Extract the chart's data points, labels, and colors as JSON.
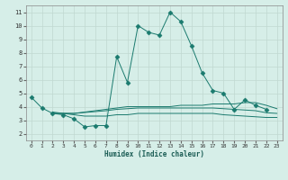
{
  "xlabel": "Humidex (Indice chaleur)",
  "xlim": [
    -0.5,
    23.5
  ],
  "ylim": [
    1.5,
    11.5
  ],
  "xticks": [
    0,
    1,
    2,
    3,
    4,
    5,
    6,
    7,
    8,
    9,
    10,
    11,
    12,
    13,
    14,
    15,
    16,
    17,
    18,
    19,
    20,
    21,
    22,
    23
  ],
  "yticks": [
    2,
    3,
    4,
    5,
    6,
    7,
    8,
    9,
    10,
    11
  ],
  "bg_color": "#d6eee8",
  "line_color": "#1a7a6e",
  "grid_color": "#c0d8d0",
  "series": [
    {
      "x": [
        0,
        1,
        2,
        3,
        4,
        5,
        6,
        7,
        8,
        9,
        10,
        11,
        12,
        13,
        14,
        15,
        16,
        17,
        18,
        19,
        20,
        21,
        22,
        23
      ],
      "y": [
        4.7,
        3.9,
        3.5,
        3.4,
        3.1,
        2.5,
        2.6,
        2.6,
        7.7,
        5.8,
        10.0,
        9.5,
        9.3,
        11.0,
        10.3,
        8.5,
        6.5,
        5.2,
        5.0,
        3.8,
        4.5,
        4.1,
        3.8,
        null
      ],
      "marker": "D",
      "markersize": 2.5
    },
    {
      "x": [
        2,
        3,
        4,
        7,
        8,
        9,
        10,
        11,
        12,
        13,
        14,
        15,
        16,
        17,
        18,
        19,
        20,
        21,
        22,
        23
      ],
      "y": [
        3.6,
        3.5,
        3.5,
        3.8,
        3.9,
        4.0,
        4.0,
        4.0,
        4.0,
        4.0,
        4.1,
        4.1,
        4.1,
        4.2,
        4.2,
        4.2,
        4.3,
        4.3,
        4.1,
        3.85
      ],
      "marker": null,
      "markersize": 0
    },
    {
      "x": [
        2,
        3,
        4,
        7,
        8,
        9,
        10,
        11,
        12,
        13,
        14,
        15,
        16,
        17,
        18,
        19,
        20,
        21,
        22,
        23
      ],
      "y": [
        3.5,
        3.5,
        3.5,
        3.7,
        3.8,
        3.85,
        3.9,
        3.9,
        3.9,
        3.9,
        3.9,
        3.9,
        3.9,
        3.9,
        3.85,
        3.8,
        3.75,
        3.7,
        3.55,
        3.5
      ],
      "marker": null,
      "markersize": 0
    },
    {
      "x": [
        2,
        3,
        4,
        5,
        6,
        7,
        8,
        9,
        10,
        11,
        12,
        13,
        14,
        15,
        16,
        17,
        18,
        19,
        20,
        21,
        22,
        23
      ],
      "y": [
        3.5,
        3.5,
        3.4,
        3.3,
        3.3,
        3.3,
        3.4,
        3.4,
        3.5,
        3.5,
        3.5,
        3.5,
        3.5,
        3.5,
        3.5,
        3.5,
        3.4,
        3.35,
        3.3,
        3.25,
        3.2,
        3.2
      ],
      "marker": null,
      "markersize": 0
    }
  ]
}
